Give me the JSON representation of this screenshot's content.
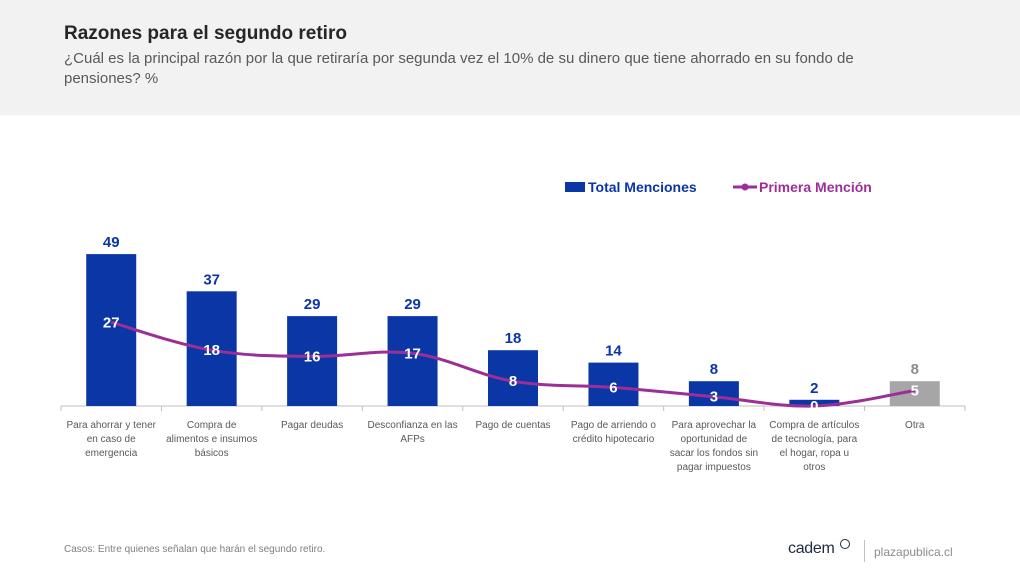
{
  "header": {
    "title": "Razones para el segundo retiro",
    "subtitle": "¿Cuál es la principal razón por la que retiraría por segunda vez el 10% de su dinero que tiene ahorrado en su fondo de pensiones? %"
  },
  "legend": {
    "total_label": "Total Menciones",
    "first_label": "Primera Mención"
  },
  "footer": {
    "note": "Casos: Entre quienes señalan que harán el segundo retiro.",
    "brand": "cadem",
    "site": "plazapublica.cl"
  },
  "colors": {
    "bar": "#0b36a6",
    "bar_other": "#a6a6a6",
    "line": "#9b2f97",
    "bar_value_text": "#0b36a6",
    "other_value_text": "#8c8c8c"
  },
  "chart_data": {
    "type": "bar",
    "title": "Razones para el segundo retiro",
    "categories": [
      [
        "Para ahorrar y tener",
        "en caso de",
        "emergencia"
      ],
      [
        "Compra de",
        "alimentos e insumos",
        "básicos"
      ],
      [
        "Pagar deudas"
      ],
      [
        "Desconfianza en las",
        "AFPs"
      ],
      [
        "Pago de cuentas"
      ],
      [
        "Pago de arriendo o",
        "crédito hipotecario"
      ],
      [
        "Para aprovechar la",
        "oportunidad de",
        "sacar los fondos sin",
        "pagar impuestos"
      ],
      [
        "Compra de artículos",
        "de tecnología, para",
        "el hogar, ropa u",
        "otros"
      ],
      [
        "Otra"
      ]
    ],
    "series": [
      {
        "name": "Total Menciones",
        "type": "bar",
        "values": [
          49,
          37,
          29,
          29,
          18,
          14,
          8,
          2,
          8
        ]
      },
      {
        "name": "Primera Mención",
        "type": "line",
        "values": [
          27,
          18,
          16,
          17,
          8,
          6,
          3,
          0,
          5
        ]
      }
    ],
    "highlight_gray_index": 8,
    "ylim": [
      0,
      50
    ],
    "legend_position": "top-right"
  }
}
